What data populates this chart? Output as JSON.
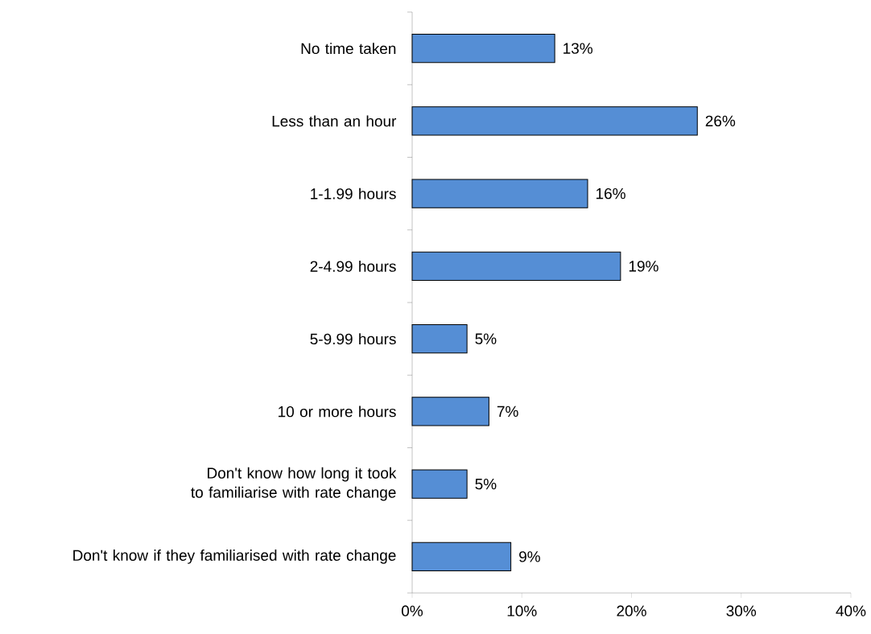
{
  "chart_data": {
    "type": "bar",
    "orientation": "horizontal",
    "categories": [
      "No time taken",
      "Less than an hour",
      "1-1.99 hours",
      "2-4.99 hours",
      "5-9.99 hours",
      "10 or more hours",
      "Don't know how long it took to familiarise with rate change",
      "Don't know if they familiarised with rate change"
    ],
    "values": [
      13,
      26,
      16,
      19,
      5,
      7,
      5,
      9
    ],
    "value_labels": [
      "13%",
      "26%",
      "16%",
      "19%",
      "5%",
      "7%",
      "5%",
      "9%"
    ],
    "color": "#558ed5",
    "xlim": [
      0,
      40
    ],
    "xticks": [
      {
        "value": 0,
        "label": "0%"
      },
      {
        "value": 10,
        "label": "10%"
      },
      {
        "value": 20,
        "label": "20%"
      },
      {
        "value": 30,
        "label": "30%"
      },
      {
        "value": 40,
        "label": "40%"
      }
    ],
    "grid": false
  }
}
